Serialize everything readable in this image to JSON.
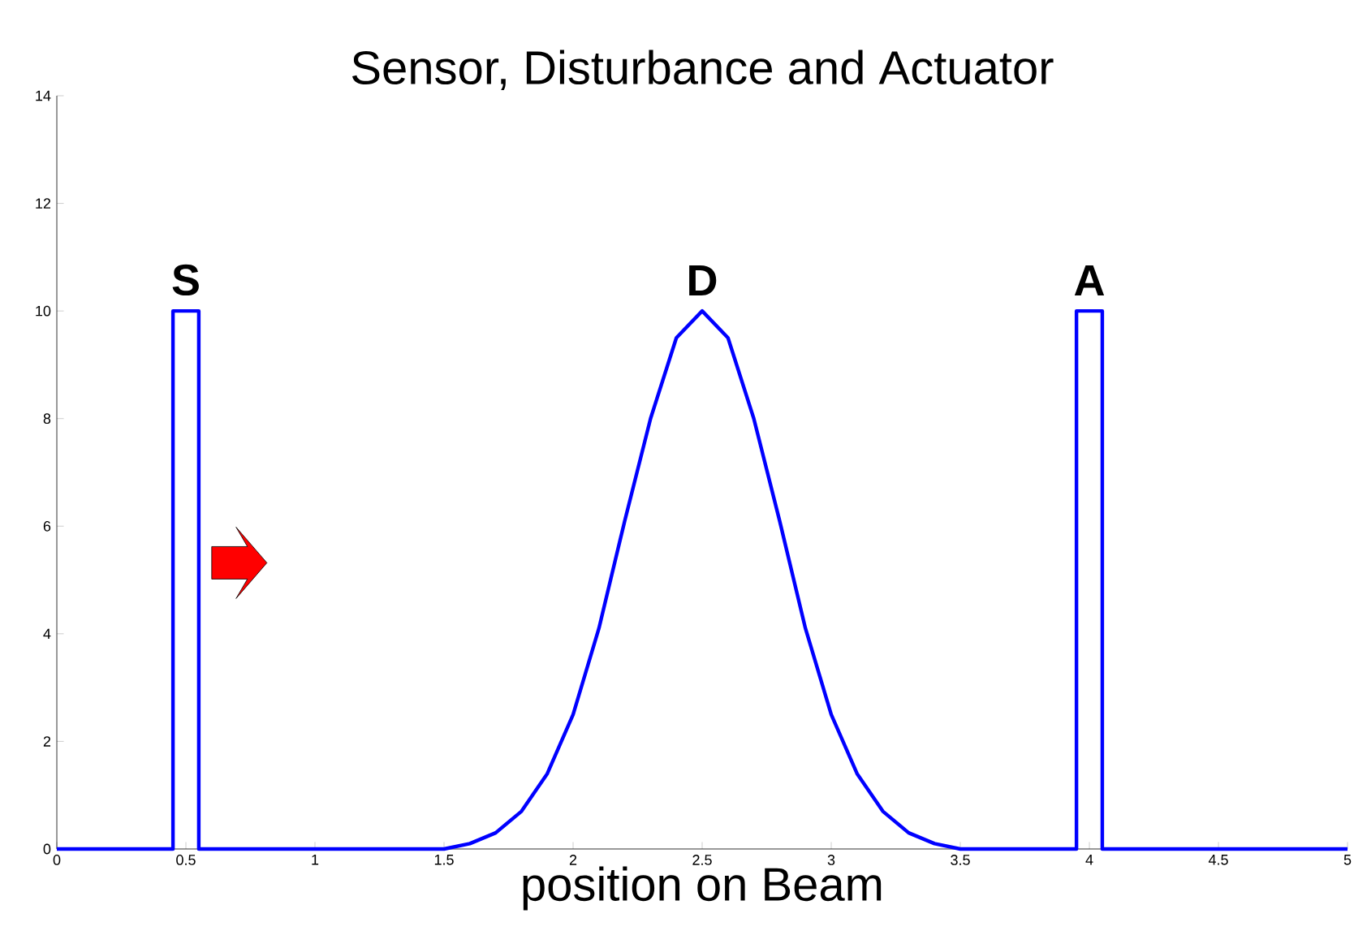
{
  "chart_data": {
    "type": "line",
    "title": "Sensor, Disturbance and Actuator",
    "xlabel": "position on Beam",
    "x": [
      0,
      0.45,
      0.45,
      0.55,
      0.55,
      1.5,
      1.6,
      1.7,
      1.8,
      1.9,
      2.0,
      2.1,
      2.2,
      2.3,
      2.4,
      2.5,
      2.6,
      2.7,
      2.8,
      2.9,
      3.0,
      3.1,
      3.2,
      3.3,
      3.4,
      3.5,
      3.95,
      3.95,
      4.05,
      4.05,
      5
    ],
    "series": [
      {
        "color": "#0000ff",
        "values": [
          0,
          0,
          10,
          10,
          0,
          0,
          0.1,
          0.3,
          0.7,
          1.4,
          2.5,
          4.1,
          6.1,
          8.0,
          9.5,
          10,
          9.5,
          8.0,
          6.1,
          4.1,
          2.5,
          1.4,
          0.7,
          0.3,
          0.1,
          0,
          0,
          10,
          10,
          0,
          0
        ]
      }
    ],
    "xlim": [
      0,
      5
    ],
    "xticks": [
      0,
      0.5,
      1,
      1.5,
      2,
      2.5,
      3,
      3.5,
      4,
      4.5,
      5
    ],
    "ylim": [
      0,
      14
    ],
    "yticks": [
      0,
      2,
      4,
      6,
      8,
      10,
      12,
      14
    ],
    "annotations": [
      {
        "text": "**S**",
        "x": 0.5,
        "y": 10
      },
      {
        "text": "**D**",
        "x": 2.5,
        "y": 10
      },
      {
        "text": "**A**",
        "x": 4.0,
        "y": 10
      }
    ],
    "grid": false,
    "marker": "none",
    "line_style": "solid"
  }
}
